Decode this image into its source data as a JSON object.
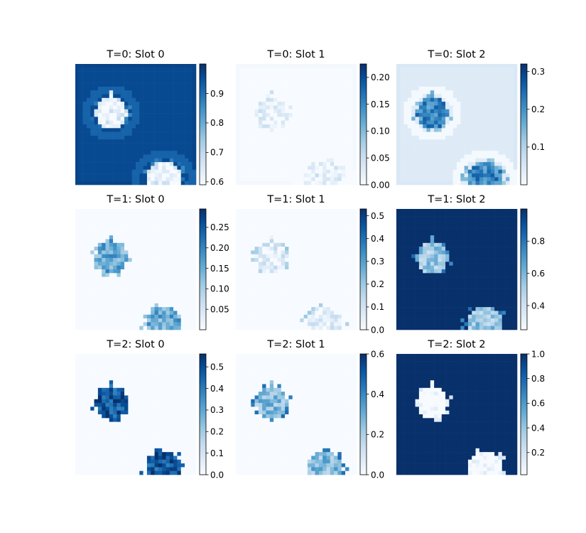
{
  "figure": {
    "colormap_low": "#f7fbff",
    "colormap_high": "#08306b"
  },
  "chart_data": [
    {
      "type": "heatmap",
      "title": "T=0: Slot 0",
      "vmin": 0.59,
      "vmax": 1.0,
      "ticks": [
        0.6,
        0.7,
        0.8,
        0.9
      ],
      "tick_labels": [
        "0.6",
        "0.7",
        "0.8",
        "0.9"
      ],
      "background": 0.96,
      "blob_fill": 0.66,
      "rim": 0.86,
      "halo": 0.92,
      "row": 0,
      "col": 0
    },
    {
      "type": "heatmap",
      "title": "T=0: Slot 1",
      "vmin": 0.0,
      "vmax": 0.225,
      "ticks": [
        0.0,
        0.05,
        0.1,
        0.15,
        0.2
      ],
      "tick_labels": [
        "0.00",
        "0.05",
        "0.10",
        "0.15",
        "0.20"
      ],
      "background": 0.0,
      "blob_fill": 0.035,
      "rim": 0.01,
      "halo": 0.0,
      "row": 0,
      "col": 1
    },
    {
      "type": "heatmap",
      "title": "T=0: Slot 2",
      "vmin": 0.0,
      "vmax": 0.32,
      "ticks": [
        0.1,
        0.2,
        0.3
      ],
      "tick_labels": [
        "0.1",
        "0.2",
        "0.3"
      ],
      "background": 0.04,
      "blob_fill": 0.24,
      "rim": 0.12,
      "halo": 0.005,
      "row": 0,
      "col": 2
    },
    {
      "type": "heatmap",
      "title": "T=1: Slot 0",
      "vmin": 0.0,
      "vmax": 0.295,
      "ticks": [
        0.05,
        0.1,
        0.15,
        0.2,
        0.25
      ],
      "tick_labels": [
        "0.05",
        "0.10",
        "0.15",
        "0.20",
        "0.25"
      ],
      "background": 0.0,
      "blob_fill": 0.18,
      "rim": 0.1,
      "halo": 0.0,
      "row": 1,
      "col": 0
    },
    {
      "type": "heatmap",
      "title": "T=1: Slot 1",
      "vmin": 0.0,
      "vmax": 0.53,
      "ticks": [
        0.0,
        0.1,
        0.2,
        0.3,
        0.4,
        0.5
      ],
      "tick_labels": [
        "0.0",
        "0.1",
        "0.2",
        "0.3",
        "0.4",
        "0.5"
      ],
      "background": 0.0,
      "blob_fill": 0.1,
      "rim": 0.15,
      "halo": 0.0,
      "row": 1,
      "col": 1
    },
    {
      "type": "heatmap",
      "title": "T=1: Slot 2",
      "vmin": 0.25,
      "vmax": 1.0,
      "ticks": [
        0.4,
        0.6,
        0.8
      ],
      "tick_labels": [
        "0.4",
        "0.6",
        "0.8"
      ],
      "background": 1.0,
      "blob_fill": 0.6,
      "rim": 0.75,
      "halo": 1.0,
      "row": 1,
      "col": 2
    },
    {
      "type": "heatmap",
      "title": "T=2: Slot 0",
      "vmin": 0.0,
      "vmax": 0.56,
      "ticks": [
        0.0,
        0.1,
        0.2,
        0.3,
        0.4,
        0.5
      ],
      "tick_labels": [
        "0.0",
        "0.1",
        "0.2",
        "0.3",
        "0.4",
        "0.5"
      ],
      "background": 0.0,
      "blob_fill": 0.53,
      "rim": 0.45,
      "halo": 0.0,
      "row": 2,
      "col": 0
    },
    {
      "type": "heatmap",
      "title": "T=2: Slot 1",
      "vmin": 0.0,
      "vmax": 0.6,
      "ticks": [
        0.0,
        0.2,
        0.4,
        0.6
      ],
      "tick_labels": [
        "0.0",
        "0.2",
        "0.4",
        "0.6"
      ],
      "background": 0.0,
      "blob_fill": 0.32,
      "rim": 0.4,
      "halo": 0.0,
      "row": 2,
      "col": 1
    },
    {
      "type": "heatmap",
      "title": "T=2: Slot 2",
      "vmin": 0.02,
      "vmax": 1.0,
      "ticks": [
        0.2,
        0.4,
        0.6,
        0.8,
        1.0
      ],
      "tick_labels": [
        "0.2",
        "0.4",
        "0.6",
        "0.8",
        "1.0"
      ],
      "background": 1.0,
      "blob_fill": 0.06,
      "rim": 0.1,
      "halo": 1.0,
      "row": 2,
      "col": 2
    }
  ]
}
